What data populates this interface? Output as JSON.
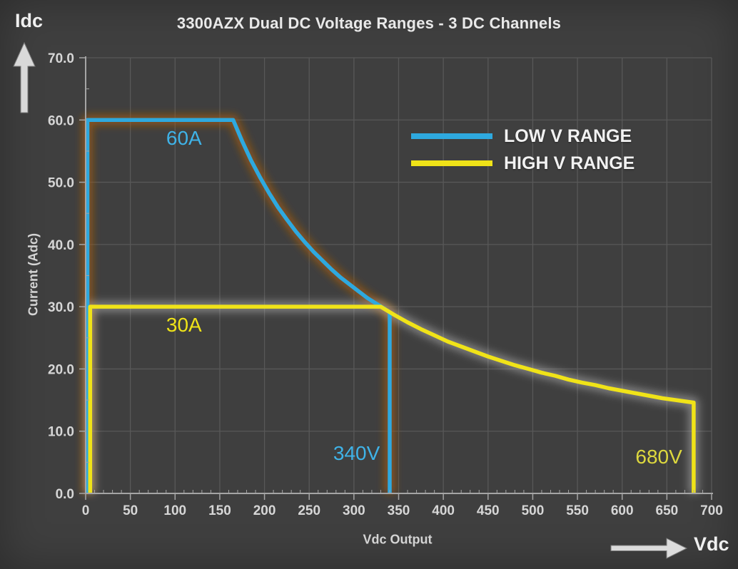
{
  "title": "3300AZX Dual DC Voltage Ranges - 3 DC Channels",
  "axis_arrows": {
    "idc": "Idc",
    "vdc": "Vdc"
  },
  "colors": {
    "background": "#3f3f3f",
    "gridline": "#585858",
    "axis": "#a5a5a5",
    "tick_label": "#d6d6d6",
    "low_range": "#2ea9df",
    "high_range": "#f0e318",
    "low_glow": "#9c5a16",
    "high_glow": "#c9c9c9"
  },
  "chart_data": {
    "type": "line",
    "title": "3300AZX Dual DC Voltage Ranges - 3 DC Channels",
    "xlabel": "Vdc Output",
    "ylabel": "Current (Adc)",
    "xlim": [
      0,
      700
    ],
    "ylim": [
      0,
      70
    ],
    "x_major_tick": 50,
    "x_minor_tick": 10,
    "y_major_tick": 10,
    "y_minor_tick": 5,
    "grid": "on",
    "legend_position": "top-right",
    "series": [
      {
        "name": "LOW V RANGE",
        "color": "#2ea9df",
        "glow_color": "#9c5a16",
        "max_current_a": 60,
        "max_voltage_v": 340,
        "points": [
          [
            2,
            0
          ],
          [
            2,
            60
          ],
          [
            165,
            60
          ],
          [
            175,
            56.6
          ],
          [
            185,
            53.5
          ],
          [
            195,
            50.8
          ],
          [
            205,
            48.3
          ],
          [
            215,
            46.0
          ],
          [
            225,
            44.0
          ],
          [
            235,
            42.1
          ],
          [
            245,
            40.4
          ],
          [
            255,
            38.8
          ],
          [
            265,
            37.4
          ],
          [
            275,
            36.0
          ],
          [
            285,
            34.7
          ],
          [
            295,
            33.6
          ],
          [
            305,
            32.5
          ],
          [
            315,
            31.4
          ],
          [
            325,
            30.5
          ],
          [
            335,
            29.6
          ],
          [
            340,
            29.1
          ],
          [
            340,
            0
          ]
        ]
      },
      {
        "name": "HIGH V RANGE",
        "color": "#f0e318",
        "glow_color": "#c9c9c9",
        "max_current_a": 30,
        "max_voltage_v": 680,
        "points": [
          [
            5,
            0
          ],
          [
            5,
            30
          ],
          [
            330,
            30
          ],
          [
            345,
            28.7
          ],
          [
            360,
            27.5
          ],
          [
            375,
            26.4
          ],
          [
            390,
            25.4
          ],
          [
            405,
            24.4
          ],
          [
            420,
            23.6
          ],
          [
            435,
            22.8
          ],
          [
            450,
            22.0
          ],
          [
            465,
            21.3
          ],
          [
            480,
            20.6
          ],
          [
            495,
            20.0
          ],
          [
            510,
            19.4
          ],
          [
            525,
            18.9
          ],
          [
            540,
            18.3
          ],
          [
            555,
            17.8
          ],
          [
            570,
            17.4
          ],
          [
            585,
            16.9
          ],
          [
            600,
            16.5
          ],
          [
            615,
            16.1
          ],
          [
            630,
            15.7
          ],
          [
            645,
            15.3
          ],
          [
            660,
            15.0
          ],
          [
            680,
            14.6
          ],
          [
            680,
            0
          ]
        ]
      }
    ],
    "annotations": [
      {
        "text": "60A",
        "x": 110,
        "y": 57,
        "color": "#3fb3e8"
      },
      {
        "text": "30A",
        "x": 110,
        "y": 27,
        "color": "#efe318"
      },
      {
        "text": "340V",
        "x": 303,
        "y": 6.4,
        "color": "#3fb3e8"
      },
      {
        "text": "680V",
        "x": 641,
        "y": 5.8,
        "color": "#ddd83e"
      }
    ]
  }
}
